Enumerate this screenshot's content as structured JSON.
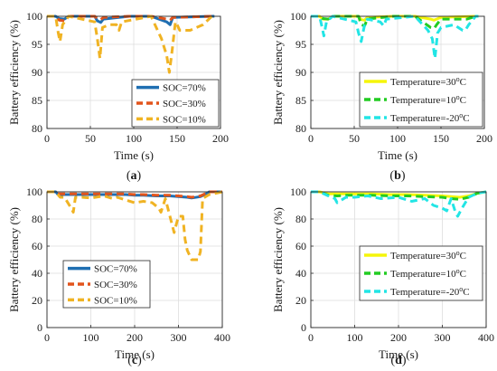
{
  "chart_data": [
    {
      "type": "line",
      "panel_label": "(a)",
      "panel_letter": "a",
      "xlabel": "Time (s)",
      "ylabel": "Battery efficiency (%)",
      "xlim": [
        0,
        200
      ],
      "ylim": [
        80,
        100
      ],
      "xticks": [
        0,
        50,
        100,
        150,
        200
      ],
      "yticks": [
        80,
        85,
        90,
        95,
        100
      ],
      "grid": true,
      "legend_position": "bottom-right",
      "series": [
        {
          "name": "SOC=70%",
          "color": "#1f6fb2",
          "style": "solid",
          "x": [
            0,
            10,
            14,
            20,
            25,
            55,
            58,
            62,
            65,
            95,
            120,
            138,
            142,
            145,
            190,
            193
          ],
          "y": [
            100,
            100,
            99.6,
            99.5,
            100,
            100,
            99.2,
            98.9,
            99.5,
            100,
            100,
            99.0,
            98.5,
            99.8,
            100,
            100
          ]
        },
        {
          "name": "SOC=30%",
          "color": "#e2541c",
          "style": "dashed",
          "x": [
            0,
            10,
            14,
            20,
            25,
            55,
            58,
            62,
            65,
            95,
            120,
            138,
            142,
            145,
            190,
            193
          ],
          "y": [
            100,
            100,
            99.3,
            99.2,
            100,
            100,
            99.6,
            99.4,
            99.8,
            100,
            100,
            99.5,
            99.3,
            99.8,
            100,
            100
          ]
        },
        {
          "name": "SOC=10%",
          "color": "#f0b323",
          "style": "dashed",
          "x": [
            0,
            10,
            13,
            15,
            18,
            25,
            55,
            58,
            61,
            64,
            72,
            80,
            83,
            86,
            120,
            132,
            138,
            141,
            144,
            148,
            150,
            153,
            158,
            165,
            180,
            190,
            193
          ],
          "y": [
            100,
            100,
            97,
            95.5,
            98.5,
            100,
            99,
            96,
            92.5,
            98,
            98.5,
            98.5,
            97.5,
            99,
            100,
            96,
            93,
            90,
            93.5,
            99,
            98.5,
            97.5,
            97.5,
            97.5,
            98.5,
            100,
            100
          ]
        }
      ]
    },
    {
      "type": "line",
      "panel_label": "(b)",
      "panel_letter": "b",
      "xlabel": "Time (s)",
      "ylabel": "Battery efficiency (%)",
      "xlim": [
        0,
        200
      ],
      "ylim": [
        80,
        100
      ],
      "xticks": [
        0,
        50,
        100,
        150,
        200
      ],
      "yticks": [
        80,
        85,
        90,
        95,
        100
      ],
      "grid": true,
      "legend_position": "bottom-right",
      "series": [
        {
          "name": "Temperature=30",
          "color": "#f5f50a",
          "style": "solid",
          "x": [
            0,
            10,
            14,
            20,
            25,
            55,
            58,
            62,
            65,
            95,
            120,
            138,
            142,
            145,
            150,
            190,
            193
          ],
          "y": [
            100,
            100,
            99.5,
            99.5,
            100,
            100,
            99.4,
            99.3,
            99.8,
            100,
            100,
            99.5,
            99.3,
            99.5,
            99.8,
            100,
            100
          ]
        },
        {
          "name": "Temperature=10",
          "color": "#22cc22",
          "style": "dashed",
          "x": [
            0,
            10,
            14,
            20,
            25,
            55,
            58,
            62,
            65,
            95,
            120,
            138,
            142,
            145,
            150,
            180,
            190,
            193
          ],
          "y": [
            100,
            100,
            99.6,
            99.5,
            100,
            100,
            98.5,
            98.3,
            99.5,
            100,
            100,
            98,
            97.8,
            98.5,
            99.5,
            99.5,
            100,
            100
          ]
        },
        {
          "name": "Temperature=-20",
          "color": "#22e5e5",
          "style": "dashed",
          "x": [
            0,
            10,
            13,
            15,
            18,
            25,
            52,
            55,
            58,
            62,
            65,
            80,
            84,
            87,
            120,
            135,
            140,
            143,
            146,
            150,
            165,
            175,
            178,
            182,
            190,
            193
          ],
          "y": [
            100,
            100,
            98,
            96.5,
            99,
            100,
            99,
            97,
            95.5,
            98.5,
            99.5,
            99,
            98.3,
            99.5,
            100,
            97.5,
            96,
            92.5,
            97,
            98,
            98.5,
            97.5,
            97.5,
            98.5,
            100,
            100
          ]
        }
      ]
    },
    {
      "type": "line",
      "panel_label": "(c)",
      "panel_letter": "c",
      "xlabel": "Time (s)",
      "ylabel": "Battery efficiency (%)",
      "xlim": [
        0,
        400
      ],
      "ylim": [
        0,
        100
      ],
      "xticks": [
        0,
        100,
        200,
        300,
        400
      ],
      "yticks": [
        0,
        20,
        40,
        60,
        80,
        100
      ],
      "grid": true,
      "legend_position": "bottom-left",
      "series": [
        {
          "name": "SOC=70%",
          "color": "#1f6fb2",
          "style": "solid",
          "x": [
            0,
            20,
            25,
            40,
            60,
            100,
            120,
            140,
            180,
            200,
            220,
            250,
            280,
            300,
            320,
            330,
            350,
            360,
            370,
            400
          ],
          "y": [
            100,
            100,
            98,
            98,
            98,
            98,
            98,
            98,
            98,
            97.5,
            97.5,
            97,
            97,
            96.5,
            96,
            95.5,
            96.5,
            98,
            100,
            100
          ]
        },
        {
          "name": "SOC=30%",
          "color": "#e2541c",
          "style": "dashed",
          "x": [
            0,
            20,
            25,
            40,
            60,
            100,
            120,
            140,
            180,
            200,
            220,
            250,
            280,
            300,
            320,
            330,
            350,
            360,
            370,
            400
          ],
          "y": [
            100,
            100,
            98.5,
            98.5,
            98.5,
            98.5,
            98.5,
            98.5,
            98.5,
            98,
            98,
            97.5,
            97.5,
            97,
            96.5,
            96,
            97,
            98.5,
            100,
            100
          ]
        },
        {
          "name": "SOC=10%",
          "color": "#f0b323",
          "style": "dashed",
          "x": [
            0,
            20,
            30,
            40,
            55,
            60,
            65,
            80,
            100,
            130,
            150,
            160,
            200,
            220,
            240,
            255,
            260,
            270,
            290,
            300,
            310,
            315,
            320,
            330,
            345,
            350,
            355,
            370,
            400
          ],
          "y": [
            100,
            100,
            96,
            96,
            88,
            85,
            96,
            96,
            95.5,
            97,
            95,
            96,
            92,
            93,
            92,
            88,
            85,
            95,
            70,
            82,
            82,
            65,
            57,
            50,
            50,
            56,
            95,
            98,
            100
          ]
        }
      ]
    },
    {
      "type": "line",
      "panel_label": "(d)",
      "panel_letter": "d",
      "xlabel": "Time (s)",
      "ylabel": "Battery efficiency (%)",
      "xlim": [
        0,
        400
      ],
      "ylim": [
        0,
        100
      ],
      "xticks": [
        0,
        100,
        200,
        300,
        400
      ],
      "yticks": [
        0,
        20,
        40,
        60,
        80,
        100
      ],
      "grid": true,
      "legend_position": "bottom-right",
      "series": [
        {
          "name": "Temperature=30",
          "color": "#f5f50a",
          "style": "solid",
          "x": [
            0,
            20,
            40,
            80,
            100,
            140,
            180,
            220,
            260,
            300,
            320,
            340,
            360,
            380,
            400
          ],
          "y": [
            100,
            100,
            98.5,
            98.5,
            98.5,
            98.5,
            98,
            98,
            97.5,
            97,
            96.5,
            96,
            97,
            99,
            100
          ]
        },
        {
          "name": "Temperature=10",
          "color": "#22cc22",
          "style": "dashed",
          "x": [
            0,
            20,
            40,
            60,
            80,
            100,
            140,
            180,
            220,
            260,
            300,
            320,
            340,
            360,
            380,
            400
          ],
          "y": [
            100,
            100,
            97.5,
            97,
            97.5,
            97.5,
            97.5,
            97,
            97,
            96.5,
            96,
            95,
            94.5,
            96,
            99,
            100
          ]
        },
        {
          "name": "Temperature=-20",
          "color": "#22e5e5",
          "style": "dashed",
          "x": [
            0,
            20,
            40,
            55,
            60,
            80,
            100,
            130,
            160,
            200,
            230,
            260,
            280,
            300,
            310,
            320,
            330,
            335,
            345,
            360,
            380,
            400
          ],
          "y": [
            100,
            100,
            97,
            95,
            92,
            96,
            96,
            97,
            95,
            96,
            93,
            95,
            90,
            88,
            86,
            95,
            85,
            82,
            88,
            96,
            99,
            100
          ]
        }
      ]
    }
  ]
}
